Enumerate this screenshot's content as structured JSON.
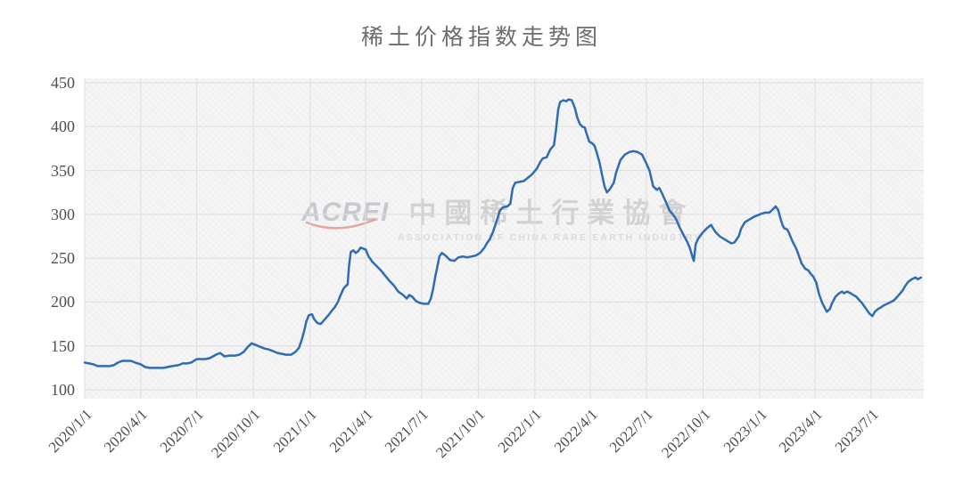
{
  "chart_data": {
    "type": "line",
    "title": "稀土价格指数走势图",
    "xlabel": "",
    "ylabel": "",
    "ylim": [
      100,
      450
    ],
    "y_ticks": [
      450,
      400,
      350,
      300,
      250,
      200,
      150,
      100
    ],
    "x_ticks": [
      "2020/1/1",
      "2020/4/1",
      "2020/7/1",
      "2020/10/1",
      "2021/1/1",
      "2021/4/1",
      "2021/7/1",
      "2021/10/1",
      "2022/1/1",
      "2022/4/1",
      "2022/7/1",
      "2022/10/1",
      "2023/1/1",
      "2023/4/1",
      "2023/7/1"
    ],
    "grid": true,
    "legend": "none",
    "series": [
      {
        "name": "稀土价格指数",
        "color": "#2f6cb3",
        "points": [
          [
            "2020-01-01",
            131
          ],
          [
            "2020-01-08",
            130
          ],
          [
            "2020-01-15",
            129
          ],
          [
            "2020-01-22",
            127
          ],
          [
            "2020-02-01",
            127
          ],
          [
            "2020-02-10",
            127
          ],
          [
            "2020-02-17",
            128
          ],
          [
            "2020-02-24",
            131
          ],
          [
            "2020-03-02",
            133
          ],
          [
            "2020-03-09",
            133
          ],
          [
            "2020-03-16",
            133
          ],
          [
            "2020-03-23",
            131
          ],
          [
            "2020-04-01",
            129
          ],
          [
            "2020-04-08",
            126
          ],
          [
            "2020-04-15",
            125
          ],
          [
            "2020-04-22",
            125
          ],
          [
            "2020-05-01",
            125
          ],
          [
            "2020-05-08",
            125
          ],
          [
            "2020-05-15",
            126
          ],
          [
            "2020-05-22",
            127
          ],
          [
            "2020-06-01",
            128
          ],
          [
            "2020-06-08",
            130
          ],
          [
            "2020-06-15",
            130
          ],
          [
            "2020-06-22",
            131
          ],
          [
            "2020-07-01",
            135
          ],
          [
            "2020-07-08",
            135
          ],
          [
            "2020-07-15",
            135
          ],
          [
            "2020-07-22",
            136
          ],
          [
            "2020-08-01",
            140
          ],
          [
            "2020-08-08",
            142
          ],
          [
            "2020-08-15",
            138
          ],
          [
            "2020-08-22",
            139
          ],
          [
            "2020-09-01",
            139
          ],
          [
            "2020-09-08",
            140
          ],
          [
            "2020-09-15",
            143
          ],
          [
            "2020-09-22",
            149
          ],
          [
            "2020-09-28",
            153
          ],
          [
            "2020-10-05",
            151
          ],
          [
            "2020-10-12",
            149
          ],
          [
            "2020-10-19",
            147
          ],
          [
            "2020-10-26",
            146
          ],
          [
            "2020-11-02",
            144
          ],
          [
            "2020-11-09",
            142
          ],
          [
            "2020-11-16",
            141
          ],
          [
            "2020-11-23",
            140
          ],
          [
            "2020-12-01",
            140
          ],
          [
            "2020-12-08",
            143
          ],
          [
            "2020-12-14",
            148
          ],
          [
            "2020-12-18",
            156
          ],
          [
            "2020-12-22",
            166
          ],
          [
            "2020-12-26",
            178
          ],
          [
            "2020-12-30",
            185
          ],
          [
            "2021-01-04",
            186
          ],
          [
            "2021-01-08",
            180
          ],
          [
            "2021-01-13",
            176
          ],
          [
            "2021-01-18",
            175
          ],
          [
            "2021-01-22",
            178
          ],
          [
            "2021-01-27",
            182
          ],
          [
            "2021-02-01",
            186
          ],
          [
            "2021-02-05",
            190
          ],
          [
            "2021-02-10",
            194
          ],
          [
            "2021-02-15",
            200
          ],
          [
            "2021-02-19",
            207
          ],
          [
            "2021-02-24",
            215
          ],
          [
            "2021-03-01",
            219
          ],
          [
            "2021-03-03",
            220
          ],
          [
            "2021-03-05",
            240
          ],
          [
            "2021-03-08",
            257
          ],
          [
            "2021-03-12",
            259
          ],
          [
            "2021-03-16",
            256
          ],
          [
            "2021-03-20",
            258
          ],
          [
            "2021-03-24",
            262
          ],
          [
            "2021-03-28",
            261
          ],
          [
            "2021-04-01",
            260
          ],
          [
            "2021-04-06",
            252
          ],
          [
            "2021-04-12",
            246
          ],
          [
            "2021-04-19",
            241
          ],
          [
            "2021-04-26",
            236
          ],
          [
            "2021-05-03",
            230
          ],
          [
            "2021-05-10",
            224
          ],
          [
            "2021-05-17",
            219
          ],
          [
            "2021-05-24",
            212
          ],
          [
            "2021-06-01",
            208
          ],
          [
            "2021-06-07",
            204
          ],
          [
            "2021-06-11",
            208
          ],
          [
            "2021-06-16",
            206
          ],
          [
            "2021-06-22",
            201
          ],
          [
            "2021-06-28",
            199
          ],
          [
            "2021-07-05",
            198
          ],
          [
            "2021-07-12",
            198
          ],
          [
            "2021-07-16",
            204
          ],
          [
            "2021-07-20",
            216
          ],
          [
            "2021-07-23",
            228
          ],
          [
            "2021-07-27",
            242
          ],
          [
            "2021-07-30",
            252
          ],
          [
            "2021-08-03",
            256
          ],
          [
            "2021-08-09",
            253
          ],
          [
            "2021-08-16",
            248
          ],
          [
            "2021-08-23",
            247
          ],
          [
            "2021-08-30",
            251
          ],
          [
            "2021-09-06",
            252
          ],
          [
            "2021-09-13",
            251
          ],
          [
            "2021-09-20",
            252
          ],
          [
            "2021-09-27",
            253
          ],
          [
            "2021-10-04",
            256
          ],
          [
            "2021-10-11",
            262
          ],
          [
            "2021-10-15",
            267
          ],
          [
            "2021-10-20",
            272
          ],
          [
            "2021-10-25",
            280
          ],
          [
            "2021-11-01",
            295
          ],
          [
            "2021-11-05",
            304
          ],
          [
            "2021-11-10",
            308
          ],
          [
            "2021-11-17",
            309
          ],
          [
            "2021-11-22",
            312
          ],
          [
            "2021-11-26",
            330
          ],
          [
            "2021-11-30",
            336
          ],
          [
            "2021-12-07",
            337
          ],
          [
            "2021-12-14",
            338
          ],
          [
            "2021-12-21",
            342
          ],
          [
            "2021-12-28",
            346
          ],
          [
            "2022-01-04",
            352
          ],
          [
            "2022-01-10",
            360
          ],
          [
            "2022-01-14",
            364
          ],
          [
            "2022-01-20",
            365
          ],
          [
            "2022-01-26",
            374
          ],
          [
            "2022-02-01",
            379
          ],
          [
            "2022-02-04",
            395
          ],
          [
            "2022-02-08",
            420
          ],
          [
            "2022-02-11",
            428
          ],
          [
            "2022-02-16",
            430
          ],
          [
            "2022-02-21",
            429
          ],
          [
            "2022-02-25",
            431
          ],
          [
            "2022-03-02",
            430
          ],
          [
            "2022-03-07",
            421
          ],
          [
            "2022-03-11",
            410
          ],
          [
            "2022-03-15",
            403
          ],
          [
            "2022-03-19",
            400
          ],
          [
            "2022-03-23",
            399
          ],
          [
            "2022-03-26",
            392
          ],
          [
            "2022-03-30",
            383
          ],
          [
            "2022-04-04",
            381
          ],
          [
            "2022-04-08",
            378
          ],
          [
            "2022-04-12",
            369
          ],
          [
            "2022-04-16",
            359
          ],
          [
            "2022-04-20",
            345
          ],
          [
            "2022-04-24",
            332
          ],
          [
            "2022-04-28",
            325
          ],
          [
            "2022-05-03",
            329
          ],
          [
            "2022-05-09",
            336
          ],
          [
            "2022-05-13",
            348
          ],
          [
            "2022-05-20",
            362
          ],
          [
            "2022-05-27",
            368
          ],
          [
            "2022-06-03",
            371
          ],
          [
            "2022-06-10",
            372
          ],
          [
            "2022-06-17",
            371
          ],
          [
            "2022-06-24",
            368
          ],
          [
            "2022-07-01",
            358
          ],
          [
            "2022-07-06",
            350
          ],
          [
            "2022-07-12",
            332
          ],
          [
            "2022-07-18",
            328
          ],
          [
            "2022-07-22",
            330
          ],
          [
            "2022-07-27",
            323
          ],
          [
            "2022-08-03",
            312
          ],
          [
            "2022-08-08",
            304
          ],
          [
            "2022-08-13",
            300
          ],
          [
            "2022-08-18",
            295
          ],
          [
            "2022-08-24",
            285
          ],
          [
            "2022-08-30",
            277
          ],
          [
            "2022-09-05",
            269
          ],
          [
            "2022-09-10",
            261
          ],
          [
            "2022-09-14",
            251
          ],
          [
            "2022-09-16",
            247
          ],
          [
            "2022-09-19",
            266
          ],
          [
            "2022-09-23",
            272
          ],
          [
            "2022-09-30",
            279
          ],
          [
            "2022-10-07",
            284
          ],
          [
            "2022-10-14",
            288
          ],
          [
            "2022-10-21",
            280
          ],
          [
            "2022-10-28",
            275
          ],
          [
            "2022-11-04",
            272
          ],
          [
            "2022-11-11",
            269
          ],
          [
            "2022-11-16",
            267
          ],
          [
            "2022-11-21",
            268
          ],
          [
            "2022-11-28",
            275
          ],
          [
            "2022-12-02",
            284
          ],
          [
            "2022-12-08",
            291
          ],
          [
            "2022-12-15",
            294
          ],
          [
            "2022-12-22",
            297
          ],
          [
            "2022-12-29",
            299
          ],
          [
            "2023-01-05",
            301
          ],
          [
            "2023-01-11",
            302
          ],
          [
            "2023-01-17",
            302
          ],
          [
            "2023-01-24",
            307
          ],
          [
            "2023-01-27",
            309
          ],
          [
            "2023-01-31",
            305
          ],
          [
            "2023-02-03",
            297
          ],
          [
            "2023-02-07",
            288
          ],
          [
            "2023-02-10",
            284
          ],
          [
            "2023-02-14",
            283
          ],
          [
            "2023-02-17",
            280
          ],
          [
            "2023-02-21",
            273
          ],
          [
            "2023-02-24",
            268
          ],
          [
            "2023-02-28",
            263
          ],
          [
            "2023-03-03",
            258
          ],
          [
            "2023-03-07",
            250
          ],
          [
            "2023-03-10",
            244
          ],
          [
            "2023-03-16",
            238
          ],
          [
            "2023-03-21",
            236
          ],
          [
            "2023-03-24",
            233
          ],
          [
            "2023-03-29",
            229
          ],
          [
            "2023-04-03",
            222
          ],
          [
            "2023-04-07",
            210
          ],
          [
            "2023-04-12",
            200
          ],
          [
            "2023-04-17",
            193
          ],
          [
            "2023-04-20",
            189
          ],
          [
            "2023-04-25",
            192
          ],
          [
            "2023-04-28",
            198
          ],
          [
            "2023-05-04",
            206
          ],
          [
            "2023-05-10",
            210
          ],
          [
            "2023-05-15",
            212
          ],
          [
            "2023-05-18",
            210
          ],
          [
            "2023-05-23",
            212
          ],
          [
            "2023-05-29",
            210
          ],
          [
            "2023-06-02",
            208
          ],
          [
            "2023-06-07",
            206
          ],
          [
            "2023-06-12",
            202
          ],
          [
            "2023-06-16",
            199
          ],
          [
            "2023-06-20",
            195
          ],
          [
            "2023-06-24",
            191
          ],
          [
            "2023-06-28",
            187
          ],
          [
            "2023-07-03",
            184
          ],
          [
            "2023-07-07",
            189
          ],
          [
            "2023-07-12",
            192
          ],
          [
            "2023-07-17",
            194
          ],
          [
            "2023-07-21",
            196
          ],
          [
            "2023-07-27",
            198
          ],
          [
            "2023-08-02",
            200
          ],
          [
            "2023-08-07",
            202
          ],
          [
            "2023-08-11",
            205
          ],
          [
            "2023-08-16",
            209
          ],
          [
            "2023-08-21",
            213
          ],
          [
            "2023-08-25",
            218
          ],
          [
            "2023-08-30",
            223
          ],
          [
            "2023-09-05",
            226
          ],
          [
            "2023-09-11",
            228
          ],
          [
            "2023-09-15",
            226
          ],
          [
            "2023-09-20",
            228
          ]
        ]
      }
    ]
  },
  "watermark": {
    "logo": "ACREI",
    "cn": "中國稀土行業協會",
    "en": "ASSOCIATION OF CHINA RARE EARTH INDUSTRY"
  },
  "colors": {
    "line": "#2f6cb3",
    "grid": "#dedede",
    "plot_background": "#f3f3f3",
    "axis_text": "#4f4f4f",
    "title_text": "#6d6d6d",
    "watermark_gray": "#d2d2d2",
    "watermark_red": "#dd9389"
  }
}
